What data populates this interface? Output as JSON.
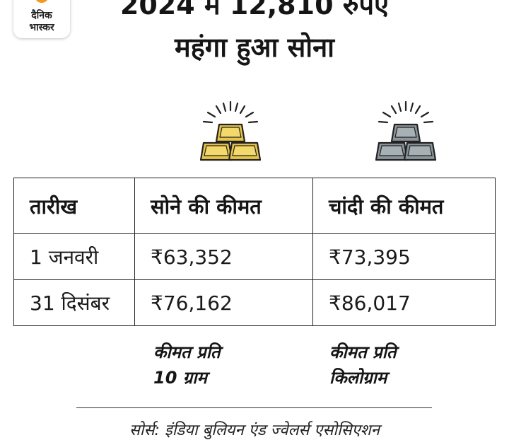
{
  "brand": {
    "line1": "दैनिक",
    "line2": "भास्कर"
  },
  "headline": {
    "line1": "2024 में 12,810 रुपए",
    "line2": "महंगा हुआ सोना"
  },
  "icons": {
    "gold": "gold-bars-icon",
    "silver": "silver-bars-icon"
  },
  "colors": {
    "gold": "#e8c547",
    "silver": "#8a9499",
    "outline": "#222222",
    "brand_accent": "#f39a1c"
  },
  "table": {
    "headers": [
      "तारीख",
      "सोने की कीमत",
      "चांदी की कीमत"
    ],
    "rows": [
      [
        "1 जनवरी",
        "₹63,352",
        "₹73,395"
      ],
      [
        "31 दिसंबर",
        "₹76,162",
        "₹86,017"
      ]
    ]
  },
  "notes": {
    "gold": {
      "line1": "कीमत प्रति",
      "line2": "10 ग्राम"
    },
    "silver": {
      "line1": "कीमत प्रति",
      "line2": "किलोग्राम"
    }
  },
  "source": "सोर्स: इंडिया बुलियन एंड ज्वेलर्स एसोसिएशन"
}
